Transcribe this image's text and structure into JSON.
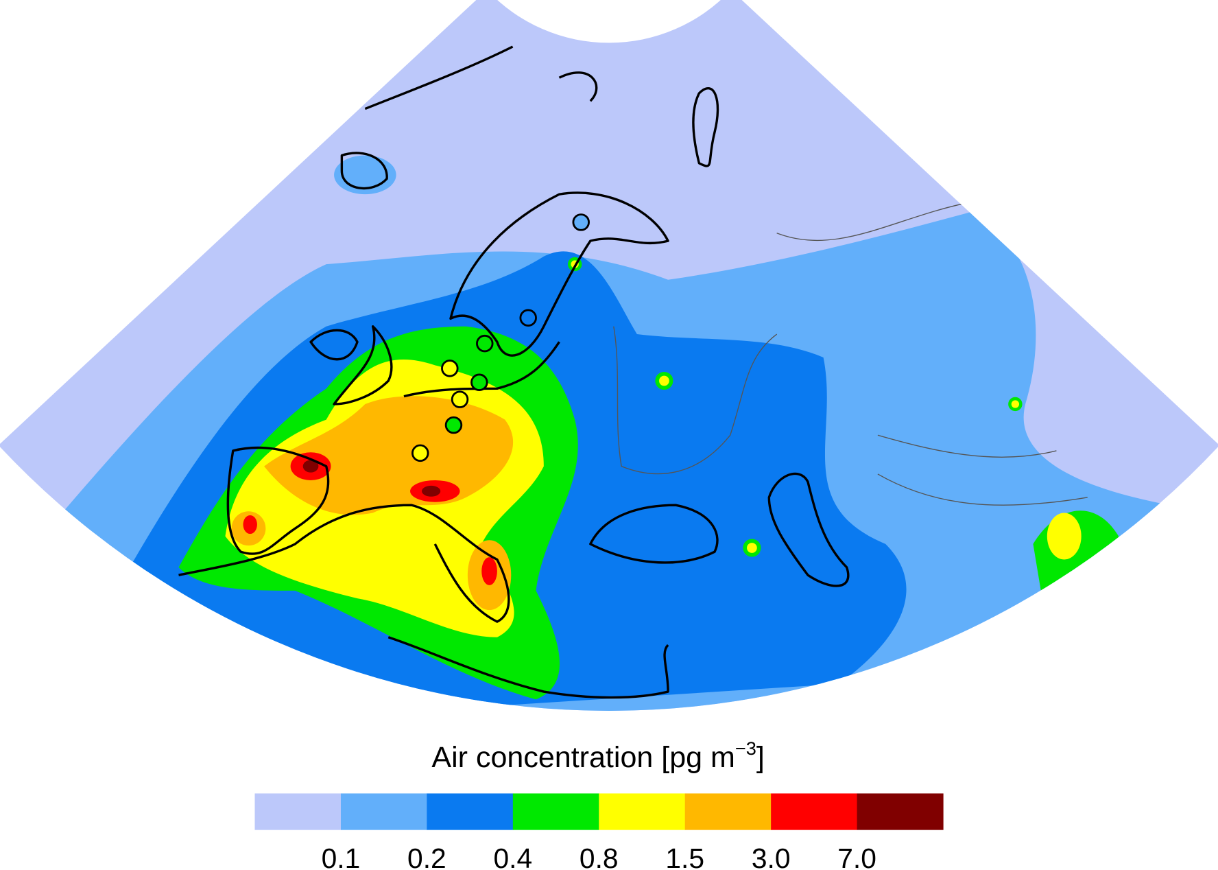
{
  "title": {
    "text": "Air concentration [pg m",
    "superscript": "−3",
    "suffix": "]"
  },
  "colorbar": {
    "colors": [
      "#bcc8fa",
      "#62affa",
      "#0a7af0",
      "#00e800",
      "#ffff00",
      "#ffb800",
      "#ff0000",
      "#800000"
    ],
    "ticks": [
      0.1,
      0.2,
      0.4,
      0.8,
      1.5,
      {
        "value": 3,
        "label": "3.0"
      },
      {
        "value": 7,
        "label": "7.0"
      }
    ]
  }
}
